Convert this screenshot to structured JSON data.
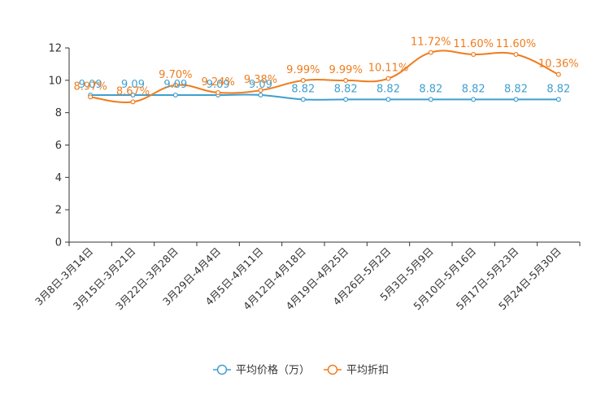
{
  "chart_data": {
    "type": "line",
    "title": "",
    "xlabel": "",
    "ylabel": "",
    "ylim": [
      0,
      12
    ],
    "yticks": [
      0,
      2,
      4,
      6,
      8,
      10,
      12
    ],
    "categories": [
      "3月8日-3月14日",
      "3月15日-3月21日",
      "3月22日-3月28日",
      "3月29日-4月4日",
      "4月5日-4月11日",
      "4月12日-4月18日",
      "4月19日-4月25日",
      "4月26日-5月2日",
      "5月3日-5月9日",
      "5月10日-5月16日",
      "5月17日-5月23日",
      "5月24日-5月30日"
    ],
    "series": [
      {
        "name": "平均价格（万）",
        "color": "#3f9fce",
        "values": [
          9.09,
          9.09,
          9.09,
          9.09,
          9.09,
          8.82,
          8.82,
          8.82,
          8.82,
          8.82,
          8.82,
          8.82
        ],
        "labels": [
          "9.09",
          "9.09",
          "9.09",
          "9.09",
          "9.09",
          "8.82",
          "8.82",
          "8.82",
          "8.82",
          "8.82",
          "8.82",
          "8.82"
        ]
      },
      {
        "name": "平均折扣",
        "color": "#f07c1d",
        "values": [
          8.97,
          8.67,
          9.7,
          9.24,
          9.38,
          9.99,
          9.99,
          10.11,
          11.72,
          11.6,
          11.6,
          10.36
        ],
        "labels": [
          "8.97%",
          "8.67%",
          "9.70%",
          "9.24%",
          "9.38%",
          "9.99%",
          "9.99%",
          "10.11%",
          "11.72%",
          "11.60%",
          "11.60%",
          "10.36%"
        ]
      }
    ],
    "legend_position": "bottom-center"
  }
}
